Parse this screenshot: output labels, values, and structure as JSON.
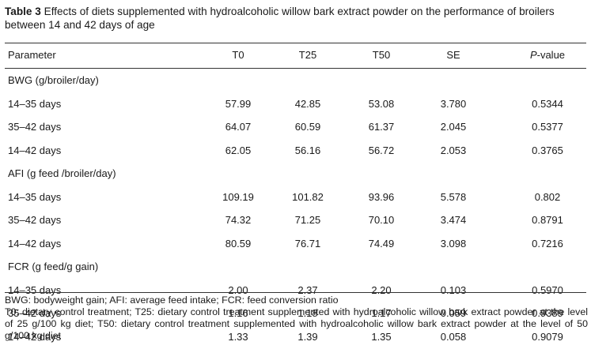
{
  "caption": {
    "label": "Table 3",
    "text": "Effects of diets supplemented with hydroalcoholic willow bark extract powder on the performance of broilers between 14 and 42 days of age"
  },
  "header": {
    "parameter": "Parameter",
    "t0": "T0",
    "t25": "T25",
    "t50": "T50",
    "se": "SE",
    "p_italic": "P",
    "p_rest": "-value"
  },
  "sections": [
    {
      "title": "BWG (g/broiler/day)",
      "rows": [
        {
          "period": "14–35 days",
          "t0": "57.99",
          "t25": "42.85",
          "t50": "53.08",
          "se": "3.780",
          "p": "0.5344"
        },
        {
          "period": "35–42 days",
          "t0": "64.07",
          "t25": "60.59",
          "t50": "61.37",
          "se": "2.045",
          "p": "0.5377"
        },
        {
          "period": "14–42 days",
          "t0": "62.05",
          "t25": "56.16",
          "t50": "56.72",
          "se": "2.053",
          "p": "0.3765"
        }
      ]
    },
    {
      "title": "AFI (g feed /broiler/day)",
      "rows": [
        {
          "period": "14–35 days",
          "t0": "109.19",
          "t25": "101.82",
          "t50": "93.96",
          "se": "5.578",
          "p": "0.802"
        },
        {
          "period": "35–42 days",
          "t0": "74.32",
          "t25": "71.25",
          "t50": "70.10",
          "se": "3.474",
          "p": "0.8791"
        },
        {
          "period": "14–42 days",
          "t0": "80.59",
          "t25": "76.71",
          "t50": "74.49",
          "se": "3.098",
          "p": "0.7216"
        }
      ]
    },
    {
      "title": "FCR (g feed/g gain)",
      "rows": [
        {
          "period": "14–35 days",
          "t0": "2.00",
          "t25": "2.37",
          "t50": "2.20",
          "se": "0.103",
          "p": "0.5970"
        },
        {
          "period": "35–42 days",
          "t0": "1.16",
          "t25": "1.18",
          "t50": "1.17",
          "se": "0.059",
          "p": "0.9389"
        },
        {
          "period": "14–42 days",
          "t0": "1.33",
          "t25": "1.39",
          "t50": "1.35",
          "se": "0.058",
          "p": "0.9079"
        }
      ]
    }
  ],
  "footnotes": {
    "abbrev": "BWG: bodyweight gain; AFI: average feed intake; FCR: feed conversion ratio",
    "treatments": "T0: dietary control treatment; T25: dietary control treatment supplemented with hydroalcoholic willow bark extract powder at the level of 25 g/100 kg diet; T50: dietary control treatment supplemented with hydroalcoholic willow bark extract powder at the level of 50 g/100 kg diet"
  }
}
